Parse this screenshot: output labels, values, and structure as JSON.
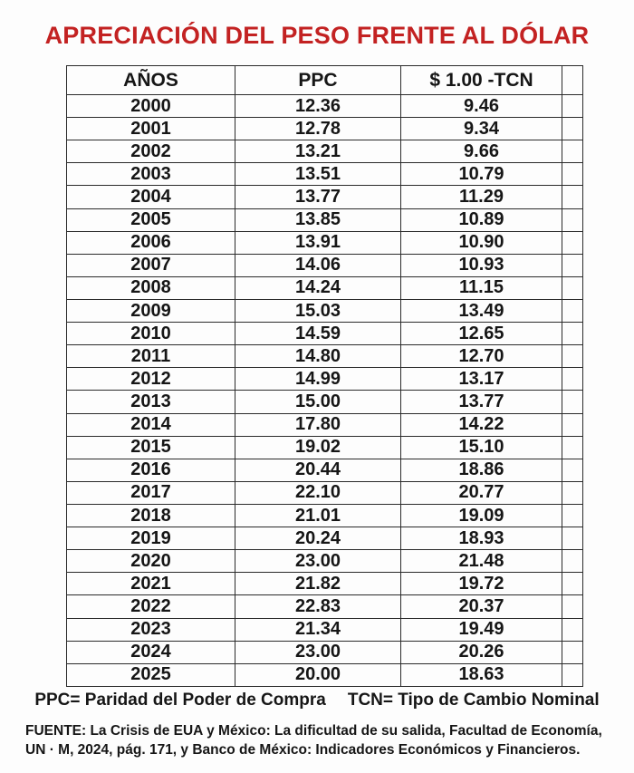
{
  "title": "APRECIACIÓN DEL PESO FRENTE AL DÓLAR",
  "title_color": "#c32222",
  "table": {
    "headers": [
      "AÑOS",
      "PPC",
      "$ 1.00 -TCN"
    ],
    "rows": [
      [
        "2000",
        "12.36",
        "9.46"
      ],
      [
        "2001",
        "12.78",
        "9.34"
      ],
      [
        "2002",
        "13.21",
        "9.66"
      ],
      [
        "2003",
        "13.51",
        "10.79"
      ],
      [
        "2004",
        "13.77",
        "11.29"
      ],
      [
        "2005",
        "13.85",
        "10.89"
      ],
      [
        "2006",
        "13.91",
        "10.90"
      ],
      [
        "2007",
        "14.06",
        "10.93"
      ],
      [
        "2008",
        "14.24",
        "11.15"
      ],
      [
        "2009",
        "15.03",
        "13.49"
      ],
      [
        "2010",
        "14.59",
        "12.65"
      ],
      [
        "2011",
        "14.80",
        "12.70"
      ],
      [
        "2012",
        "14.99",
        "13.17"
      ],
      [
        "2013",
        "15.00",
        "13.77"
      ],
      [
        "2014",
        "17.80",
        "14.22"
      ],
      [
        "2015",
        "19.02",
        "15.10"
      ],
      [
        "2016",
        "20.44",
        "18.86"
      ],
      [
        "2017",
        "22.10",
        "20.77"
      ],
      [
        "2018",
        "21.01",
        "19.09"
      ],
      [
        "2019",
        "20.24",
        "18.93"
      ],
      [
        "2020",
        "23.00",
        "21.48"
      ],
      [
        "2021",
        "21.82",
        "19.72"
      ],
      [
        "2022",
        "22.83",
        "20.37"
      ],
      [
        "2023",
        "21.34",
        "19.49"
      ],
      [
        "2024",
        "23.00",
        "20.26"
      ],
      [
        "2025",
        "20.00",
        "18.63"
      ]
    ]
  },
  "legend": {
    "ppc": "PPC= Paridad del Poder de Compra",
    "tcn": "TCN= Tipo de Cambio Nominal"
  },
  "source": {
    "line1": "FUENTE: La Crisis de EUA y México: La dificultad de su salida, Facultad de Economía,",
    "line2": "UN · M, 2024, pág. 171, y Banco de México: Indicadores Económicos y Financieros."
  }
}
